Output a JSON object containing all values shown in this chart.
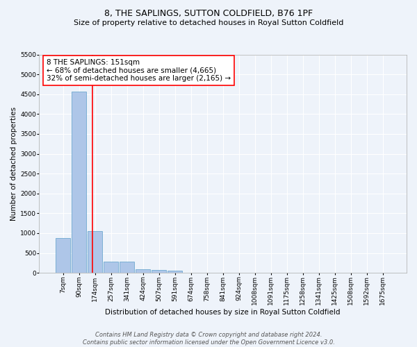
{
  "title": "8, THE SAPLINGS, SUTTON COLDFIELD, B76 1PF",
  "subtitle": "Size of property relative to detached houses in Royal Sutton Coldfield",
  "xlabel": "Distribution of detached houses by size in Royal Sutton Coldfield",
  "ylabel": "Number of detached properties",
  "footer_line1": "Contains HM Land Registry data © Crown copyright and database right 2024.",
  "footer_line2": "Contains public sector information licensed under the Open Government Licence v3.0.",
  "bar_labels": [
    "7sqm",
    "90sqm",
    "174sqm",
    "257sqm",
    "341sqm",
    "424sqm",
    "507sqm",
    "591sqm",
    "674sqm",
    "758sqm",
    "841sqm",
    "924sqm",
    "1008sqm",
    "1091sqm",
    "1175sqm",
    "1258sqm",
    "1341sqm",
    "1425sqm",
    "1508sqm",
    "1592sqm",
    "1675sqm"
  ],
  "bar_values": [
    880,
    4560,
    1060,
    290,
    280,
    90,
    80,
    55,
    0,
    0,
    0,
    0,
    0,
    0,
    0,
    0,
    0,
    0,
    0,
    0,
    0
  ],
  "bar_color": "#aec6e8",
  "bar_edge_color": "#5a9ec9",
  "vline_x": 1.85,
  "vline_color": "red",
  "ylim": [
    0,
    5500
  ],
  "yticks": [
    0,
    500,
    1000,
    1500,
    2000,
    2500,
    3000,
    3500,
    4000,
    4500,
    5000,
    5500
  ],
  "annotation_text": "8 THE SAPLINGS: 151sqm\n← 68% of detached houses are smaller (4,665)\n32% of semi-detached houses are larger (2,165) →",
  "annotation_box_color": "white",
  "annotation_box_edge": "red",
  "bg_color": "#eef3fa",
  "grid_color": "white",
  "title_fontsize": 9,
  "subtitle_fontsize": 8,
  "axis_label_fontsize": 7.5,
  "tick_fontsize": 6.5,
  "annotation_fontsize": 7.5,
  "footer_fontsize": 6
}
